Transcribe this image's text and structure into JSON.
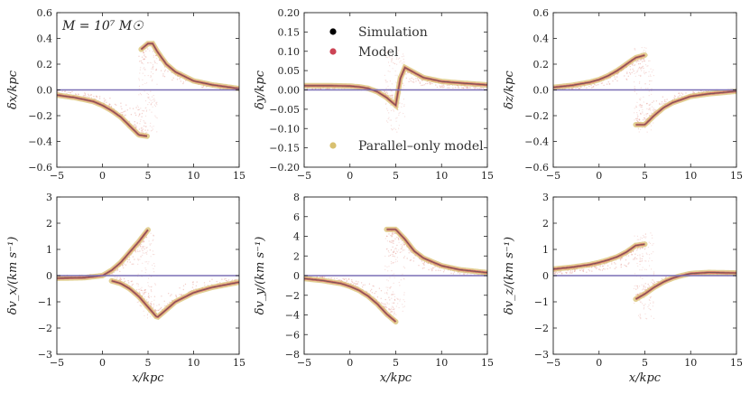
{
  "chart_data": {
    "annotation": "M = 10⁷ M☉",
    "legend": [
      "Simulation",
      "Model",
      "Parallel–only model"
    ],
    "colors": {
      "simulation": "#000000",
      "model": "#cc4455",
      "parallel": "#d8c070",
      "cloud": "#e8a8a0",
      "zero": "#7a6fb5"
    },
    "panels": [
      {
        "type": "scatter",
        "id": "dx",
        "ylabel": "δx/kpc",
        "xlabel": "",
        "xlim": [
          -5,
          15
        ],
        "ylim": [
          -0.6,
          0.6
        ],
        "xticks": [
          "-5",
          "0",
          "5",
          "10",
          "15"
        ],
        "yticks": [
          "-0.6",
          "-0.4",
          "-0.2",
          "0.0",
          "0.2",
          "0.4",
          "0.6"
        ],
        "ytick_values": [
          -0.6,
          -0.4,
          -0.2,
          0.0,
          0.2,
          0.4,
          0.6
        ],
        "upper_x": [
          -5,
          2,
          3,
          4,
          5,
          5.5,
          6,
          7,
          8,
          10,
          12,
          15
        ],
        "upper_y": [
          null,
          null,
          null,
          0.3,
          0.36,
          0.36,
          0.3,
          0.2,
          0.14,
          0.07,
          0.04,
          0.01
        ],
        "lower_x": [
          -5,
          -3,
          -1,
          0,
          1,
          2,
          3,
          4,
          5,
          6
        ],
        "lower_y": [
          -0.04,
          -0.06,
          -0.09,
          -0.12,
          -0.16,
          -0.21,
          -0.28,
          -0.35,
          -0.36,
          null
        ]
      },
      {
        "type": "scatter",
        "id": "dy",
        "ylabel": "δy/kpc",
        "xlabel": "",
        "xlim": [
          -5,
          15
        ],
        "ylim": [
          -0.2,
          0.2
        ],
        "xticks": [
          "-5",
          "0",
          "5",
          "10",
          "15"
        ],
        "yticks": [
          "-0.20",
          "-0.15",
          "-0.10",
          "-0.05",
          "0.00",
          "0.05",
          "0.10",
          "0.15",
          "0.20"
        ],
        "ytick_values": [
          -0.2,
          -0.15,
          -0.1,
          -0.05,
          0.0,
          0.05,
          0.1,
          0.15,
          0.2
        ],
        "curve_x": [
          -5,
          -2,
          0,
          1,
          2,
          3,
          4,
          5,
          5.5,
          6,
          7,
          8,
          10,
          12,
          15
        ],
        "curve_y": [
          0.011,
          0.011,
          0.01,
          0.008,
          0.004,
          -0.005,
          -0.02,
          -0.04,
          0.03,
          0.058,
          0.045,
          0.032,
          0.022,
          0.018,
          0.013
        ]
      },
      {
        "type": "scatter",
        "id": "dz",
        "ylabel": "δz/kpc",
        "xlabel": "",
        "xlim": [
          -5,
          15
        ],
        "ylim": [
          -0.6,
          0.6
        ],
        "xticks": [
          "-5",
          "0",
          "5",
          "10",
          "15"
        ],
        "yticks": [
          "-0.6",
          "-0.4",
          "-0.2",
          "0.0",
          "0.2",
          "0.4",
          "0.6"
        ],
        "ytick_values": [
          -0.6,
          -0.4,
          -0.2,
          0.0,
          0.2,
          0.4,
          0.6
        ],
        "upper_x": [
          -5,
          -3,
          -1,
          0,
          1,
          2,
          3,
          4,
          5
        ],
        "upper_y": [
          0.02,
          0.035,
          0.06,
          0.08,
          0.11,
          0.15,
          0.2,
          0.25,
          0.27
        ],
        "lower_x": [
          4,
          5,
          6,
          7,
          8,
          10,
          12,
          15
        ],
        "lower_y": [
          -0.27,
          -0.27,
          -0.2,
          -0.14,
          -0.1,
          -0.05,
          -0.03,
          -0.01
        ]
      },
      {
        "type": "scatter",
        "id": "dvx",
        "ylabel": "δv_x/(km s⁻¹)",
        "xlabel": "x/kpc",
        "xlim": [
          -5,
          15
        ],
        "ylim": [
          -3,
          3
        ],
        "xticks": [
          "-5",
          "0",
          "5",
          "10",
          "15"
        ],
        "yticks": [
          "-3",
          "-2",
          "-1",
          "0",
          "1",
          "2",
          "3"
        ],
        "ytick_values": [
          -3,
          -2,
          -1,
          0,
          1,
          2,
          3
        ],
        "upper_x": [
          -5,
          -2,
          0,
          1,
          2,
          3,
          4,
          5
        ],
        "upper_y": [
          -0.1,
          -0.08,
          0.0,
          0.2,
          0.5,
          0.9,
          1.3,
          1.75
        ],
        "lower_x": [
          1,
          2,
          3,
          4,
          5,
          6,
          7,
          8,
          10,
          12,
          15
        ],
        "lower_y": [
          -0.2,
          -0.3,
          -0.5,
          -0.8,
          -1.2,
          -1.6,
          -1.3,
          -1.0,
          -0.65,
          -0.45,
          -0.25
        ]
      },
      {
        "type": "scatter",
        "id": "dvy",
        "ylabel": "δv_y/(km s⁻¹)",
        "xlabel": "x/kpc",
        "xlim": [
          -5,
          15
        ],
        "ylim": [
          -8,
          8
        ],
        "xticks": [
          "-5",
          "0",
          "5",
          "10",
          "15"
        ],
        "yticks": [
          "-8",
          "-6",
          "-4",
          "-2",
          "0",
          "2",
          "4",
          "6",
          "8"
        ],
        "ytick_values": [
          -8,
          -6,
          -4,
          -2,
          0,
          2,
          4,
          6,
          8
        ],
        "upper_x": [
          4,
          5,
          6,
          7,
          8,
          10,
          12,
          15
        ],
        "upper_y": [
          4.7,
          4.7,
          3.7,
          2.5,
          1.8,
          1.0,
          0.6,
          0.3
        ],
        "lower_x": [
          -5,
          -3,
          -1,
          0,
          1,
          2,
          3,
          4,
          5
        ],
        "lower_y": [
          -0.3,
          -0.5,
          -0.8,
          -1.1,
          -1.5,
          -2.1,
          -2.9,
          -3.9,
          -4.7
        ]
      },
      {
        "type": "scatter",
        "id": "dvz",
        "ylabel": "δv_z/(km s⁻¹)",
        "xlabel": "x/kpc",
        "xlim": [
          -5,
          15
        ],
        "ylim": [
          -3,
          3
        ],
        "xticks": [
          "-5",
          "0",
          "5",
          "10",
          "15"
        ],
        "yticks": [
          "-3",
          "-2",
          "-1",
          "0",
          "1",
          "2",
          "3"
        ],
        "ytick_values": [
          -3,
          -2,
          -1,
          0,
          1,
          2,
          3
        ],
        "upper_x": [
          -5,
          -3,
          -1,
          0,
          1,
          2,
          3,
          4,
          5
        ],
        "upper_y": [
          0.25,
          0.32,
          0.42,
          0.5,
          0.6,
          0.72,
          0.9,
          1.15,
          1.2
        ],
        "lower_x": [
          4,
          5,
          6,
          7,
          8,
          9,
          10,
          12,
          15
        ],
        "lower_y": [
          -0.9,
          -0.7,
          -0.45,
          -0.25,
          -0.1,
          0.0,
          0.08,
          0.12,
          0.1
        ]
      }
    ]
  }
}
